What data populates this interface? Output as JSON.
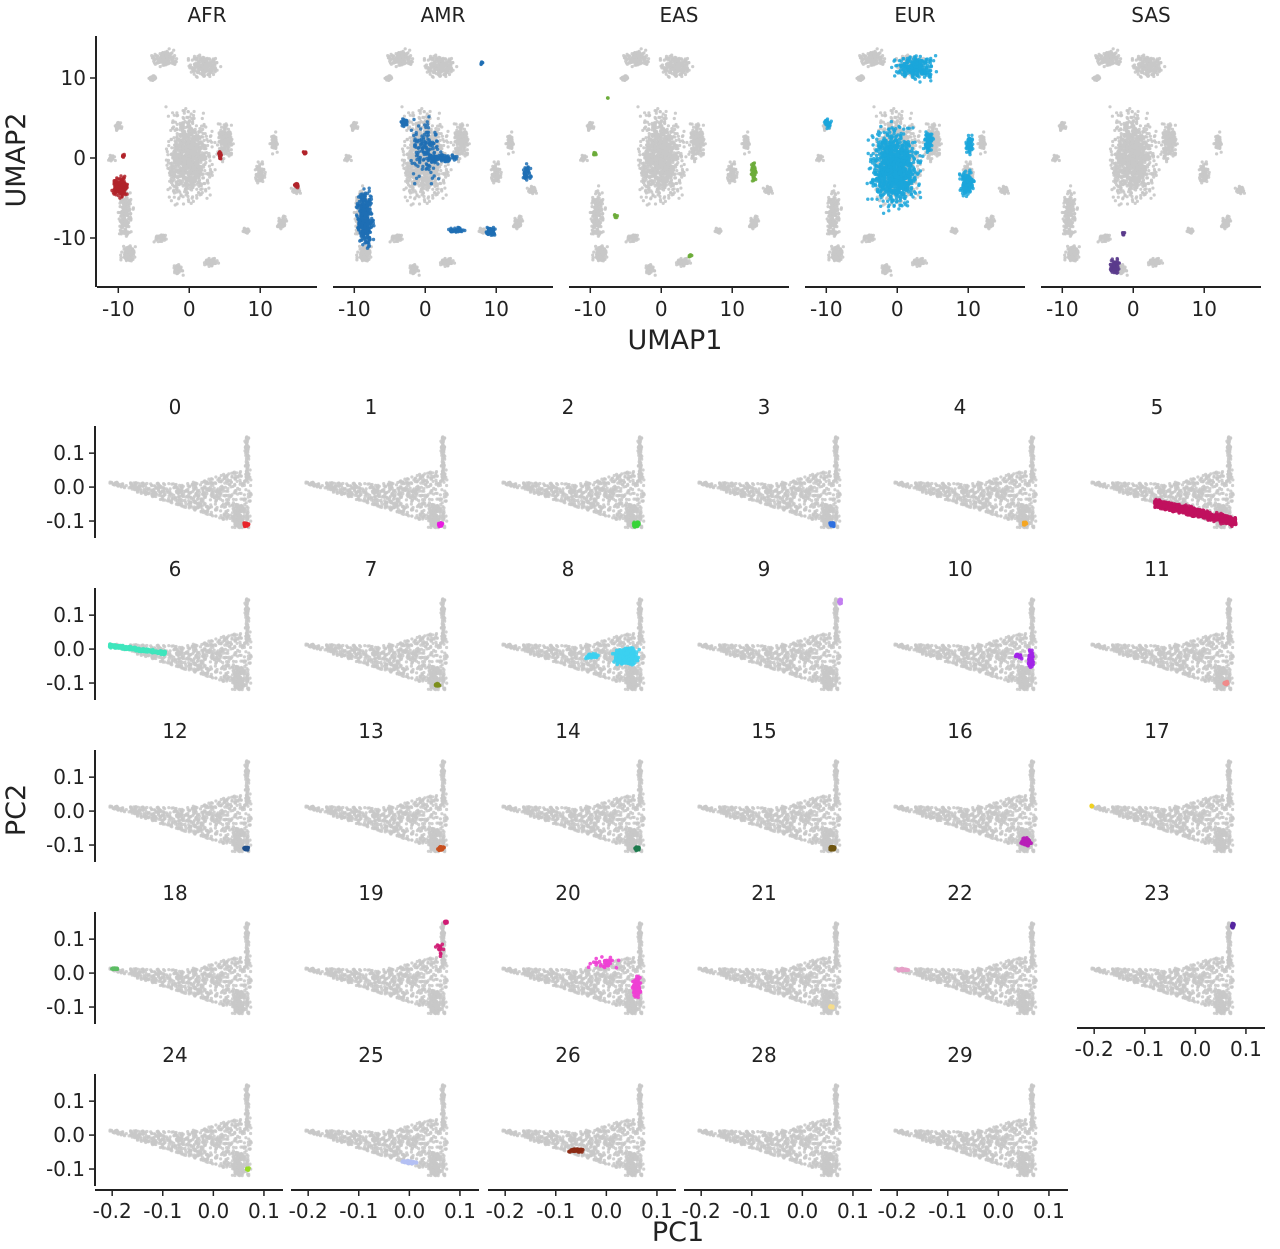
{
  "colors": {
    "background_points": "#c8c8c8",
    "axis": "#222222"
  },
  "chart_data": [
    {
      "id": "umap",
      "type": "scatter",
      "xlabel": "UMAP1",
      "ylabel": "UMAP2",
      "xlim": [
        -13,
        18
      ],
      "ylim": [
        -16,
        15
      ],
      "xticks": [
        {
          "v": -10,
          "label": "-10"
        },
        {
          "v": 0,
          "label": "0"
        },
        {
          "v": 10,
          "label": "10"
        }
      ],
      "yticks": [
        {
          "v": -10,
          "label": "-10"
        },
        {
          "v": 0,
          "label": "0"
        },
        {
          "v": 10,
          "label": "10"
        }
      ],
      "background": {
        "color": "#c8c8c8",
        "clusters": [
          {
            "x": 0,
            "y": 0,
            "w": 8,
            "h": 14
          },
          {
            "x": -3.5,
            "y": 12.5,
            "w": 4.5,
            "h": 2.8
          },
          {
            "x": 2,
            "y": 11.5,
            "w": 6,
            "h": 3.5
          },
          {
            "x": -5,
            "y": 10,
            "w": 2,
            "h": 1
          },
          {
            "x": -9,
            "y": -7,
            "w": 2.6,
            "h": 8
          },
          {
            "x": -8.5,
            "y": -12,
            "w": 3,
            "h": 3
          },
          {
            "x": -4,
            "y": -10,
            "w": 2.5,
            "h": 1.5
          },
          {
            "x": -1.5,
            "y": -14,
            "w": 2,
            "h": 1.5
          },
          {
            "x": 3,
            "y": -13,
            "w": 2.5,
            "h": 1.5
          },
          {
            "x": 5,
            "y": 2,
            "w": 3,
            "h": 6
          },
          {
            "x": 10,
            "y": -2,
            "w": 2,
            "h": 3.5
          },
          {
            "x": 8,
            "y": -9,
            "w": 1.5,
            "h": 1
          },
          {
            "x": 13,
            "y": -8,
            "w": 2,
            "h": 2
          },
          {
            "x": 12,
            "y": 2,
            "w": 1.5,
            "h": 3.5
          },
          {
            "x": 15,
            "y": -4,
            "w": 2,
            "h": 1.5
          },
          {
            "x": -10,
            "y": 4,
            "w": 1.5,
            "h": 1.5
          },
          {
            "x": -11,
            "y": 0,
            "w": 1.2,
            "h": 1.2
          }
        ]
      },
      "panels": [
        {
          "title": "AFR",
          "color": "#b2232a",
          "highlights": [
            {
              "x": -9.7,
              "y": -3.6,
              "w": 2.6,
              "h": 3.2,
              "n": 220
            },
            {
              "x": 4.3,
              "y": 0.4,
              "w": 0.7,
              "h": 1.2,
              "n": 25
            },
            {
              "x": 15.1,
              "y": -3.4,
              "w": 0.8,
              "h": 0.8,
              "n": 15
            },
            {
              "x": 16.3,
              "y": 0.7,
              "w": 0.7,
              "h": 0.6,
              "n": 15
            },
            {
              "x": -9.3,
              "y": 0.2,
              "w": 0.6,
              "h": 0.8,
              "n": 10
            }
          ]
        },
        {
          "title": "AMR",
          "color": "#1f6fb4",
          "highlights": [
            {
              "x": -8.5,
              "y": -7.5,
              "w": 2.8,
              "h": 9,
              "n": 380
            },
            {
              "x": 0,
              "y": 1,
              "w": 6,
              "h": 10,
              "n": 150
            },
            {
              "x": 9.2,
              "y": -9.2,
              "w": 1.6,
              "h": 1.3,
              "n": 80
            },
            {
              "x": 2.5,
              "y": 0,
              "w": 5,
              "h": 1.2,
              "n": 90
            },
            {
              "x": 4.5,
              "y": -9,
              "w": 3,
              "h": 0.8,
              "n": 45
            },
            {
              "x": 14.5,
              "y": -2,
              "w": 2,
              "h": 3,
              "n": 40
            },
            {
              "x": 8,
              "y": 11.8,
              "w": 0.5,
              "h": 0.5,
              "n": 8
            },
            {
              "x": -3,
              "y": 4.5,
              "w": 1.5,
              "h": 1.5,
              "n": 40
            }
          ]
        },
        {
          "title": "EAS",
          "color": "#6cab3a",
          "highlights": [
            {
              "x": 13,
              "y": -1.7,
              "w": 0.9,
              "h": 3,
              "n": 60
            },
            {
              "x": -9.4,
              "y": 0.5,
              "w": 0.6,
              "h": 0.7,
              "n": 10
            },
            {
              "x": -6.4,
              "y": -7.3,
              "w": 0.6,
              "h": 0.7,
              "n": 10
            },
            {
              "x": 4.1,
              "y": -12.3,
              "w": 0.6,
              "h": 0.6,
              "n": 8
            },
            {
              "x": -7.5,
              "y": 7.5,
              "w": 0.4,
              "h": 0.4,
              "n": 3
            }
          ]
        },
        {
          "title": "EUR",
          "color": "#1ba6da",
          "highlights": [
            {
              "x": -0.3,
              "y": -1.2,
              "w": 8.8,
              "h": 12.5,
              "n": 1100
            },
            {
              "x": 2.5,
              "y": 11.3,
              "w": 7,
              "h": 3.8,
              "n": 260
            },
            {
              "x": 9.8,
              "y": -3.1,
              "w": 2.6,
              "h": 3.8,
              "n": 140
            },
            {
              "x": 10.2,
              "y": 1.7,
              "w": 1.4,
              "h": 3,
              "n": 70
            },
            {
              "x": -9.8,
              "y": 4.3,
              "w": 1.4,
              "h": 1.6,
              "n": 35
            },
            {
              "x": 4.4,
              "y": 2,
              "w": 1.8,
              "h": 4.6,
              "n": 70
            }
          ]
        },
        {
          "title": "SAS",
          "color": "#5b3b8c",
          "highlights": [
            {
              "x": -2.6,
              "y": -13.6,
              "w": 1.6,
              "h": 2.4,
              "n": 85
            },
            {
              "x": -1.4,
              "y": -9.5,
              "w": 0.5,
              "h": 0.7,
              "n": 8
            }
          ]
        }
      ]
    },
    {
      "id": "pca",
      "type": "scatter",
      "xlabel": "PC1",
      "ylabel": "PC2",
      "xlim": [
        -0.23,
        0.11
      ],
      "ylim": [
        -0.15,
        0.18
      ],
      "xticks": [
        {
          "v": -0.2,
          "label": "-0.2"
        },
        {
          "v": -0.1,
          "label": "-0.1"
        },
        {
          "v": 0,
          "label": "0.0"
        },
        {
          "v": 0.1,
          "label": "0.1"
        }
      ],
      "yticks": [
        {
          "v": 0.1,
          "label": "0.1"
        },
        {
          "v": 0,
          "label": "0.0"
        },
        {
          "v": -0.1,
          "label": "-0.1"
        }
      ],
      "background": {
        "color": "#c8c8c8"
      },
      "panels": [
        {
          "title": "0",
          "color": "#e8242a",
          "highlights": [
            {
              "x": 0.065,
              "y": -0.11,
              "w": 0.012,
              "h": 0.016,
              "n": 40
            }
          ]
        },
        {
          "title": "1",
          "color": "#e81ce0",
          "highlights": [
            {
              "x": 0.062,
              "y": -0.11,
              "w": 0.01,
              "h": 0.014,
              "n": 35
            }
          ]
        },
        {
          "title": "2",
          "color": "#38d43a",
          "highlights": [
            {
              "x": 0.058,
              "y": -0.11,
              "w": 0.018,
              "h": 0.016,
              "n": 45
            }
          ]
        },
        {
          "title": "3",
          "color": "#2e6fe0",
          "highlights": [
            {
              "x": 0.06,
              "y": -0.11,
              "w": 0.012,
              "h": 0.016,
              "n": 35
            }
          ]
        },
        {
          "title": "4",
          "color": "#f5a623",
          "highlights": [
            {
              "x": 0.052,
              "y": -0.107,
              "w": 0.009,
              "h": 0.012,
              "n": 20
            }
          ]
        },
        {
          "title": "5",
          "color": "#c0125e",
          "highlights": [
            {
              "x": 0,
              "y": -0.06,
              "w": 0.16,
              "h": 0.05,
              "n": 900,
              "band": true
            }
          ]
        },
        {
          "title": "6",
          "color": "#3ee6bc",
          "highlights": [
            {
              "x": -0.15,
              "y": 0.005,
              "w": 0.11,
              "h": 0.02,
              "n": 320,
              "band": true
            }
          ]
        },
        {
          "title": "7",
          "color": "#7c8e1c",
          "highlights": [
            {
              "x": 0.055,
              "y": -0.105,
              "w": 0.012,
              "h": 0.012,
              "n": 30
            }
          ]
        },
        {
          "title": "8",
          "color": "#3cd0f0",
          "highlights": [
            {
              "x": 0.04,
              "y": -0.02,
              "w": 0.06,
              "h": 0.06,
              "n": 360
            },
            {
              "x": -0.03,
              "y": -0.02,
              "w": 0.04,
              "h": 0.02,
              "n": 40
            }
          ]
        },
        {
          "title": "9",
          "color": "#c27ef0",
          "highlights": [
            {
              "x": 0.075,
              "y": 0.14,
              "w": 0.008,
              "h": 0.018,
              "n": 30
            }
          ]
        },
        {
          "title": "10",
          "color": "#a224e8",
          "highlights": [
            {
              "x": 0.064,
              "y": -0.03,
              "w": 0.012,
              "h": 0.06,
              "n": 90
            },
            {
              "x": 0.04,
              "y": -0.02,
              "w": 0.02,
              "h": 0.02,
              "n": 20
            }
          ]
        },
        {
          "title": "11",
          "color": "#f08c8c",
          "highlights": [
            {
              "x": 0.06,
              "y": -0.1,
              "w": 0.012,
              "h": 0.012,
              "n": 30
            }
          ]
        },
        {
          "title": "12",
          "color": "#1e4f8c",
          "highlights": [
            {
              "x": 0.065,
              "y": -0.11,
              "w": 0.014,
              "h": 0.012,
              "n": 35
            }
          ]
        },
        {
          "title": "13",
          "color": "#c9501f",
          "highlights": [
            {
              "x": 0.062,
              "y": -0.11,
              "w": 0.018,
              "h": 0.016,
              "n": 45
            }
          ]
        },
        {
          "title": "14",
          "color": "#1c7a4c",
          "highlights": [
            {
              "x": 0.062,
              "y": -0.11,
              "w": 0.012,
              "h": 0.014,
              "n": 35
            }
          ]
        },
        {
          "title": "15",
          "color": "#6e5410",
          "highlights": [
            {
              "x": 0.06,
              "y": -0.11,
              "w": 0.014,
              "h": 0.014,
              "n": 40
            }
          ]
        },
        {
          "title": "16",
          "color": "#b81fb8",
          "highlights": [
            {
              "x": 0.055,
              "y": -0.09,
              "w": 0.025,
              "h": 0.03,
              "n": 110
            }
          ]
        },
        {
          "title": "17",
          "color": "#f0d020",
          "highlights": [
            {
              "x": -0.205,
              "y": 0.015,
              "w": 0.005,
              "h": 0.006,
              "n": 12
            }
          ]
        },
        {
          "title": "18",
          "color": "#5cbc64",
          "highlights": [
            {
              "x": -0.195,
              "y": 0.013,
              "w": 0.018,
              "h": 0.006,
              "n": 30
            }
          ]
        },
        {
          "title": "19",
          "color": "#d01c74",
          "highlights": [
            {
              "x": 0.072,
              "y": 0.15,
              "w": 0.007,
              "h": 0.01,
              "n": 25
            },
            {
              "x": 0.06,
              "y": 0.07,
              "w": 0.02,
              "h": 0.08,
              "n": 15
            }
          ]
        },
        {
          "title": "20",
          "color": "#ee40d4",
          "highlights": [
            {
              "x": 0.06,
              "y": -0.04,
              "w": 0.02,
              "h": 0.08,
              "n": 110
            },
            {
              "x": 0,
              "y": 0.03,
              "w": 0.08,
              "h": 0.05,
              "n": 35
            }
          ]
        },
        {
          "title": "21",
          "color": "#f5dc8c",
          "highlights": [
            {
              "x": 0.058,
              "y": -0.1,
              "w": 0.01,
              "h": 0.012,
              "n": 25
            }
          ]
        },
        {
          "title": "22",
          "color": "#e6a0c8",
          "highlights": [
            {
              "x": -0.19,
              "y": 0.01,
              "w": 0.03,
              "h": 0.008,
              "n": 45
            }
          ]
        },
        {
          "title": "23",
          "color": "#5526a0",
          "highlights": [
            {
              "x": 0.074,
              "y": 0.14,
              "w": 0.008,
              "h": 0.02,
              "n": 30
            }
          ]
        },
        {
          "title": "24",
          "color": "#98dc24",
          "highlights": [
            {
              "x": 0.068,
              "y": -0.1,
              "w": 0.006,
              "h": 0.012,
              "n": 20
            }
          ]
        },
        {
          "title": "25",
          "color": "#b4c0f4",
          "highlights": [
            {
              "x": 0.0,
              "y": -0.08,
              "w": 0.04,
              "h": 0.012,
              "n": 45
            }
          ]
        },
        {
          "title": "26",
          "color": "#8c2a14",
          "highlights": [
            {
              "x": -0.06,
              "y": -0.045,
              "w": 0.04,
              "h": 0.012,
              "n": 60
            }
          ]
        },
        {
          "title": "28",
          "color": "#c8c8c8",
          "highlights": []
        },
        {
          "title": "29",
          "color": "#c8c8c8",
          "highlights": []
        }
      ]
    }
  ]
}
